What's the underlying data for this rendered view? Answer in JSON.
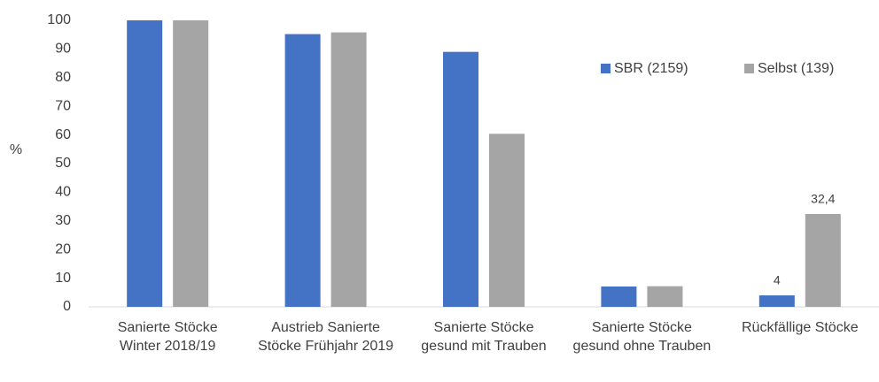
{
  "chart_data": {
    "type": "bar",
    "y_label": "%",
    "categories": [
      "Sanierte Stöcke Winter 2018/19",
      "Austrieb Sanierte Stöcke Frühjahr 2019",
      "Sanierte Stöcke gesund mit Trauben",
      "Sanierte Stöcke gesund ohne Trauben",
      "Rückfällige Stöcke"
    ],
    "series": [
      {
        "name": "SBR (2159)",
        "color": "#4472c4",
        "values": [
          100,
          95.2,
          89,
          7.1,
          4
        ],
        "value_labels": [
          null,
          null,
          null,
          null,
          "4"
        ]
      },
      {
        "name": "Selbst (139)",
        "color": "#a5a5a5",
        "values": [
          100,
          95.8,
          60.4,
          7.2,
          32.4
        ],
        "value_labels": [
          null,
          null,
          null,
          null,
          "32,4"
        ]
      }
    ],
    "ylim": [
      0,
      100
    ],
    "yticks": [
      0,
      10,
      20,
      30,
      40,
      50,
      60,
      70,
      80,
      90,
      100
    ],
    "grid": false,
    "legend": "top-right"
  }
}
